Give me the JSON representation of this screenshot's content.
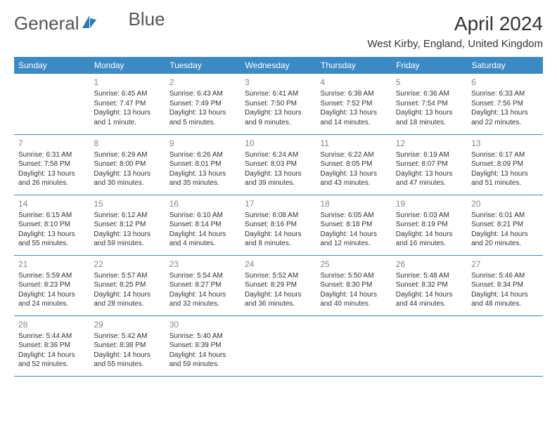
{
  "logo": {
    "text1": "General",
    "text2": "Blue"
  },
  "title": "April 2024",
  "subtitle": "West Kirby, England, United Kingdom",
  "colors": {
    "header_bg": "#3b8ac4",
    "header_fg": "#ffffff",
    "border": "#3b8ac4",
    "daynum": "#888888",
    "text": "#333333",
    "logo_blue": "#2a7ab8"
  },
  "day_headers": [
    "Sunday",
    "Monday",
    "Tuesday",
    "Wednesday",
    "Thursday",
    "Friday",
    "Saturday"
  ],
  "weeks": [
    [
      {
        "n": "",
        "lines": []
      },
      {
        "n": "1",
        "lines": [
          "Sunrise: 6:45 AM",
          "Sunset: 7:47 PM",
          "Daylight: 13 hours and 1 minute."
        ]
      },
      {
        "n": "2",
        "lines": [
          "Sunrise: 6:43 AM",
          "Sunset: 7:49 PM",
          "Daylight: 13 hours and 5 minutes."
        ]
      },
      {
        "n": "3",
        "lines": [
          "Sunrise: 6:41 AM",
          "Sunset: 7:50 PM",
          "Daylight: 13 hours and 9 minutes."
        ]
      },
      {
        "n": "4",
        "lines": [
          "Sunrise: 6:38 AM",
          "Sunset: 7:52 PM",
          "Daylight: 13 hours and 14 minutes."
        ]
      },
      {
        "n": "5",
        "lines": [
          "Sunrise: 6:36 AM",
          "Sunset: 7:54 PM",
          "Daylight: 13 hours and 18 minutes."
        ]
      },
      {
        "n": "6",
        "lines": [
          "Sunrise: 6:33 AM",
          "Sunset: 7:56 PM",
          "Daylight: 13 hours and 22 minutes."
        ]
      }
    ],
    [
      {
        "n": "7",
        "lines": [
          "Sunrise: 6:31 AM",
          "Sunset: 7:58 PM",
          "Daylight: 13 hours and 26 minutes."
        ]
      },
      {
        "n": "8",
        "lines": [
          "Sunrise: 6:29 AM",
          "Sunset: 8:00 PM",
          "Daylight: 13 hours and 30 minutes."
        ]
      },
      {
        "n": "9",
        "lines": [
          "Sunrise: 6:26 AM",
          "Sunset: 8:01 PM",
          "Daylight: 13 hours and 35 minutes."
        ]
      },
      {
        "n": "10",
        "lines": [
          "Sunrise: 6:24 AM",
          "Sunset: 8:03 PM",
          "Daylight: 13 hours and 39 minutes."
        ]
      },
      {
        "n": "11",
        "lines": [
          "Sunrise: 6:22 AM",
          "Sunset: 8:05 PM",
          "Daylight: 13 hours and 43 minutes."
        ]
      },
      {
        "n": "12",
        "lines": [
          "Sunrise: 6:19 AM",
          "Sunset: 8:07 PM",
          "Daylight: 13 hours and 47 minutes."
        ]
      },
      {
        "n": "13",
        "lines": [
          "Sunrise: 6:17 AM",
          "Sunset: 8:09 PM",
          "Daylight: 13 hours and 51 minutes."
        ]
      }
    ],
    [
      {
        "n": "14",
        "lines": [
          "Sunrise: 6:15 AM",
          "Sunset: 8:10 PM",
          "Daylight: 13 hours and 55 minutes."
        ]
      },
      {
        "n": "15",
        "lines": [
          "Sunrise: 6:12 AM",
          "Sunset: 8:12 PM",
          "Daylight: 13 hours and 59 minutes."
        ]
      },
      {
        "n": "16",
        "lines": [
          "Sunrise: 6:10 AM",
          "Sunset: 8:14 PM",
          "Daylight: 14 hours and 4 minutes."
        ]
      },
      {
        "n": "17",
        "lines": [
          "Sunrise: 6:08 AM",
          "Sunset: 8:16 PM",
          "Daylight: 14 hours and 8 minutes."
        ]
      },
      {
        "n": "18",
        "lines": [
          "Sunrise: 6:05 AM",
          "Sunset: 8:18 PM",
          "Daylight: 14 hours and 12 minutes."
        ]
      },
      {
        "n": "19",
        "lines": [
          "Sunrise: 6:03 AM",
          "Sunset: 8:19 PM",
          "Daylight: 14 hours and 16 minutes."
        ]
      },
      {
        "n": "20",
        "lines": [
          "Sunrise: 6:01 AM",
          "Sunset: 8:21 PM",
          "Daylight: 14 hours and 20 minutes."
        ]
      }
    ],
    [
      {
        "n": "21",
        "lines": [
          "Sunrise: 5:59 AM",
          "Sunset: 8:23 PM",
          "Daylight: 14 hours and 24 minutes."
        ]
      },
      {
        "n": "22",
        "lines": [
          "Sunrise: 5:57 AM",
          "Sunset: 8:25 PM",
          "Daylight: 14 hours and 28 minutes."
        ]
      },
      {
        "n": "23",
        "lines": [
          "Sunrise: 5:54 AM",
          "Sunset: 8:27 PM",
          "Daylight: 14 hours and 32 minutes."
        ]
      },
      {
        "n": "24",
        "lines": [
          "Sunrise: 5:52 AM",
          "Sunset: 8:29 PM",
          "Daylight: 14 hours and 36 minutes."
        ]
      },
      {
        "n": "25",
        "lines": [
          "Sunrise: 5:50 AM",
          "Sunset: 8:30 PM",
          "Daylight: 14 hours and 40 minutes."
        ]
      },
      {
        "n": "26",
        "lines": [
          "Sunrise: 5:48 AM",
          "Sunset: 8:32 PM",
          "Daylight: 14 hours and 44 minutes."
        ]
      },
      {
        "n": "27",
        "lines": [
          "Sunrise: 5:46 AM",
          "Sunset: 8:34 PM",
          "Daylight: 14 hours and 48 minutes."
        ]
      }
    ],
    [
      {
        "n": "28",
        "lines": [
          "Sunrise: 5:44 AM",
          "Sunset: 8:36 PM",
          "Daylight: 14 hours and 52 minutes."
        ]
      },
      {
        "n": "29",
        "lines": [
          "Sunrise: 5:42 AM",
          "Sunset: 8:38 PM",
          "Daylight: 14 hours and 55 minutes."
        ]
      },
      {
        "n": "30",
        "lines": [
          "Sunrise: 5:40 AM",
          "Sunset: 8:39 PM",
          "Daylight: 14 hours and 59 minutes."
        ]
      },
      {
        "n": "",
        "lines": []
      },
      {
        "n": "",
        "lines": []
      },
      {
        "n": "",
        "lines": []
      },
      {
        "n": "",
        "lines": []
      }
    ]
  ]
}
